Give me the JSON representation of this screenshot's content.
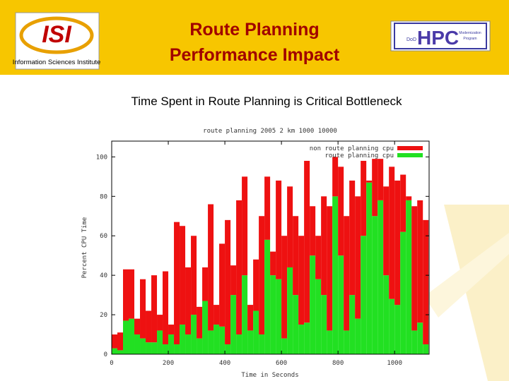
{
  "header": {
    "title_lines": [
      "Route Planning",
      "Performance Impact"
    ],
    "left_logo": {
      "mark": "ISI",
      "caption": "Information Sciences Institute"
    },
    "right_logo": {
      "mark": "HPC",
      "prefix": "DoD",
      "tag": [
        "Modernization",
        "Program"
      ]
    }
  },
  "subtitle": "Time Spent in Route Planning is Critical Bottleneck",
  "chart_data": {
    "type": "bar",
    "stacked": true,
    "title": "route planning 2005  2 km 1000   10000",
    "x_label": "Time in Seconds",
    "y_label": "Percent CPU Time",
    "x": [
      0,
      20,
      40,
      60,
      80,
      100,
      120,
      140,
      160,
      180,
      200,
      220,
      240,
      260,
      280,
      300,
      320,
      340,
      360,
      380,
      400,
      420,
      440,
      460,
      480,
      500,
      520,
      540,
      560,
      580,
      600,
      620,
      640,
      660,
      680,
      700,
      720,
      740,
      760,
      780,
      800,
      820,
      840,
      860,
      880,
      900,
      920,
      940,
      960,
      980,
      1000,
      1020,
      1040,
      1060,
      1080,
      1100
    ],
    "bar_width": 20,
    "series": [
      {
        "name": "non route planning cpu",
        "color": "#ee1111",
        "values": [
          7,
          9,
          26,
          25,
          8,
          30,
          16,
          34,
          8,
          37,
          5,
          62,
          50,
          34,
          40,
          16,
          17,
          64,
          10,
          42,
          63,
          15,
          68,
          50,
          13,
          26,
          60,
          32,
          12,
          50,
          52,
          41,
          40,
          45,
          82,
          25,
          22,
          50,
          63,
          20,
          45,
          58,
          58,
          62,
          38,
          1,
          29,
          21,
          45,
          67,
          63,
          29,
          2,
          63,
          62,
          63
        ]
      },
      {
        "name": "route planning cpu",
        "color": "#22e022",
        "values": [
          3,
          2,
          17,
          18,
          10,
          8,
          6,
          6,
          12,
          5,
          10,
          5,
          15,
          10,
          20,
          8,
          27,
          12,
          15,
          14,
          5,
          30,
          10,
          40,
          12,
          22,
          10,
          58,
          40,
          38,
          8,
          44,
          30,
          15,
          16,
          50,
          38,
          30,
          12,
          80,
          50,
          12,
          30,
          18,
          60,
          87,
          70,
          78,
          40,
          28,
          25,
          62,
          78,
          12,
          16,
          5
        ]
      }
    ],
    "stack_order": [
      1,
      0
    ],
    "xlim": [
      0,
      1122
    ],
    "ylim": [
      0,
      108
    ],
    "xticks": [
      0,
      200,
      400,
      600,
      800,
      1000
    ],
    "yticks": [
      0,
      20,
      40,
      60,
      80,
      100
    ],
    "legend": "top right",
    "grid": false
  }
}
